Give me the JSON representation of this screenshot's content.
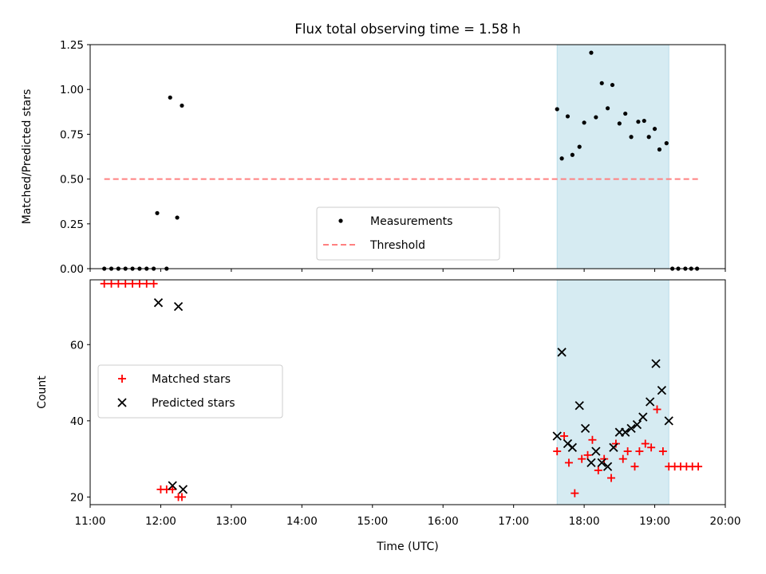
{
  "title": "Flux total observing time = 1.58 h",
  "xlabel": "Time (UTC)",
  "x_ticks": [
    "11:00",
    "12:00",
    "13:00",
    "14:00",
    "15:00",
    "16:00",
    "17:00",
    "18:00",
    "19:00",
    "20:00"
  ],
  "colors": {
    "measurement": "#000000",
    "threshold": "#ff8080",
    "matched": "#ff0000",
    "predicted": "#000000",
    "highlight": "#add8e6"
  },
  "chart_data": [
    {
      "type": "scatter",
      "ylabel": "Matched/Predicted stars",
      "xlim": [
        "11:00",
        "20:00"
      ],
      "ylim": [
        0,
        1.25
      ],
      "y_ticks": [
        "0.00",
        "0.25",
        "0.50",
        "0.75",
        "1.00",
        "1.25"
      ],
      "highlight_span": [
        "17:37",
        "19:12"
      ],
      "legend": {
        "position": "lower-center",
        "items": [
          "Measurements",
          "Threshold"
        ]
      },
      "threshold": {
        "name": "Threshold",
        "y": 0.5,
        "x_range": [
          "11:12",
          "19:37"
        ],
        "style": "dashed"
      },
      "series": [
        {
          "name": "Measurements",
          "x": [
            "11:12",
            "11:18",
            "11:24",
            "11:30",
            "11:36",
            "11:42",
            "11:48",
            "11:54",
            "11:57",
            "12:05",
            "12:08",
            "12:14",
            "12:18",
            "17:37",
            "17:41",
            "17:46",
            "17:50",
            "17:56",
            "18:00",
            "18:06",
            "18:10",
            "18:15",
            "18:20",
            "18:24",
            "18:30",
            "18:35",
            "18:40",
            "18:46",
            "18:51",
            "18:55",
            "19:00",
            "19:04",
            "19:10",
            "19:15",
            "19:20",
            "19:26",
            "19:31",
            "19:36"
          ],
          "y": [
            0,
            0,
            0,
            0,
            0,
            0,
            0,
            0,
            0.31,
            0,
            0.955,
            0.285,
            0.91,
            0.89,
            0.615,
            0.85,
            0.635,
            0.68,
            0.815,
            1.205,
            0.845,
            1.035,
            0.895,
            1.025,
            0.81,
            0.865,
            0.735,
            0.82,
            0.825,
            0.735,
            0.78,
            0.665,
            0.7,
            0,
            0,
            0,
            0,
            0
          ]
        }
      ]
    },
    {
      "type": "scatter",
      "ylabel": "Count",
      "xlim": [
        "11:00",
        "20:00"
      ],
      "ylim": [
        18,
        77
      ],
      "y_ticks": [
        "20",
        "40",
        "60"
      ],
      "highlight_span": [
        "17:37",
        "19:12"
      ],
      "legend": {
        "position": "center-left",
        "items": [
          "Matched stars",
          "Predicted stars"
        ]
      },
      "series": [
        {
          "name": "Matched stars",
          "marker": "plus",
          "x": [
            "11:12",
            "11:18",
            "11:24",
            "11:30",
            "11:36",
            "11:42",
            "11:48",
            "11:54",
            "12:00",
            "12:05",
            "12:10",
            "12:15",
            "12:18",
            "17:37",
            "17:43",
            "17:47",
            "17:52",
            "17:58",
            "18:03",
            "18:07",
            "18:12",
            "18:17",
            "18:23",
            "18:27",
            "18:33",
            "18:37",
            "18:43",
            "18:47",
            "18:52",
            "18:57",
            "19:02",
            "19:07",
            "19:12",
            "19:17",
            "19:22",
            "19:27",
            "19:32",
            "19:37"
          ],
          "y": [
            76,
            76,
            76,
            76,
            76,
            76,
            76,
            76,
            22,
            22,
            22,
            20,
            20,
            32,
            36,
            29,
            21,
            30,
            31,
            35,
            27,
            30,
            25,
            34,
            30,
            32,
            28,
            32,
            34,
            33,
            43,
            32,
            28,
            28,
            28,
            28,
            28,
            28
          ]
        },
        {
          "name": "Predicted stars",
          "marker": "x",
          "x": [
            "11:58",
            "12:10",
            "12:15",
            "12:19",
            "17:37",
            "17:41",
            "17:46",
            "17:50",
            "17:56",
            "18:01",
            "18:06",
            "18:10",
            "18:15",
            "18:20",
            "18:25",
            "18:30",
            "18:35",
            "18:40",
            "18:45",
            "18:50",
            "18:56",
            "19:01",
            "19:06",
            "19:12"
          ],
          "y": [
            71,
            23,
            70,
            22,
            36,
            58,
            34,
            33,
            44,
            38,
            29,
            32,
            29,
            28,
            33,
            37,
            37,
            38,
            39,
            41,
            45,
            55,
            48,
            40
          ]
        }
      ]
    }
  ]
}
